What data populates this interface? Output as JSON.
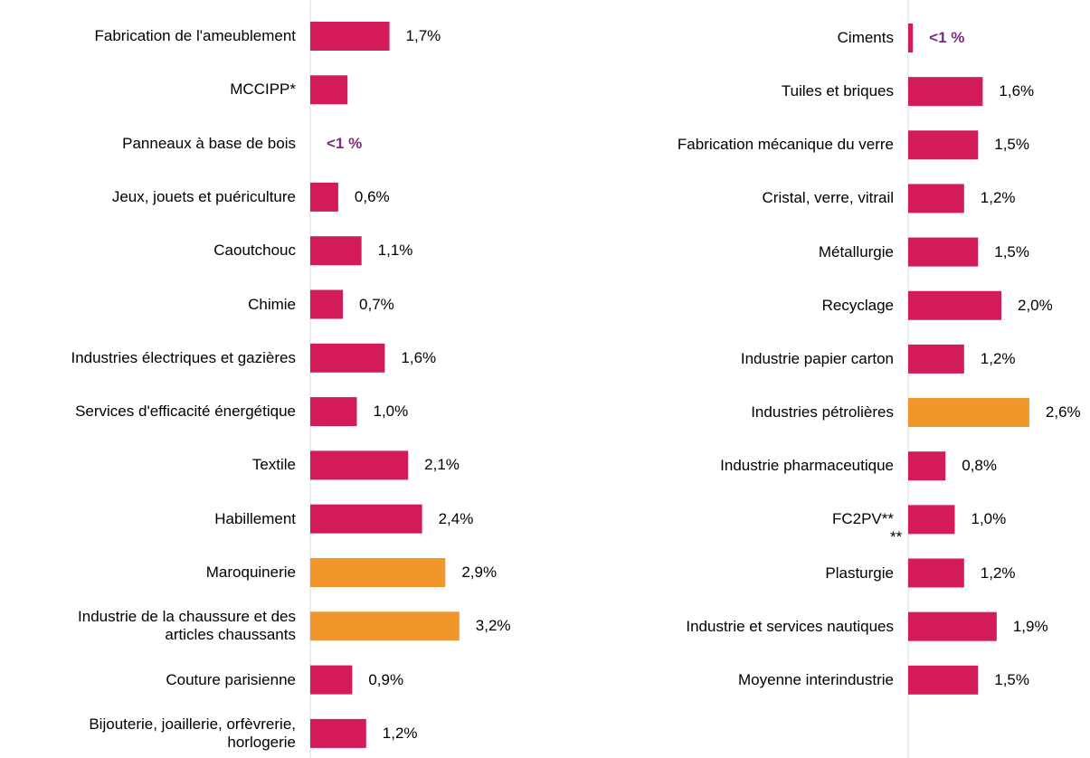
{
  "chart_data": [
    {
      "type": "bar",
      "categories": [
        "Fabrication de l'ameublement",
        "MCCIPP*",
        "Panneaux à base de bois",
        "Jeux, jouets et puériculture",
        "Caoutchouc",
        "Chimie",
        "Industries électriques et gazières",
        "Services d'efficacité énergétique",
        "Textile",
        "Habillement",
        "Maroquinerie",
        "Industrie de la chaussure et des\narticles chaussants",
        "Couture parisienne",
        "Bijouterie, joaillerie, orfèvrerie,\nhorlogerie"
      ],
      "values": [
        1.7,
        0.8,
        null,
        0.6,
        1.1,
        0.7,
        1.6,
        1.0,
        2.1,
        2.4,
        2.9,
        3.2,
        0.9,
        1.2
      ],
      "value_labels": [
        "1,7%",
        null,
        "<1 %",
        "0,6%",
        "1,1%",
        "0,7%",
        "1,6%",
        "1,0%",
        "2,1%",
        "2,4%",
        "2,9%",
        "3,2%",
        "0,9%",
        "1,2%"
      ],
      "value_label_colors": [
        "#000000",
        "#000000",
        "#7b2c7e",
        "#000000",
        "#000000",
        "#000000",
        "#000000",
        "#000000",
        "#000000",
        "#000000",
        "#000000",
        "#000000",
        "#000000",
        "#000000"
      ],
      "colors": [
        "#d31b5b",
        "#d31b5b",
        "#d31b5b",
        "#d31b5b",
        "#d31b5b",
        "#d31b5b",
        "#d31b5b",
        "#d31b5b",
        "#d31b5b",
        "#d31b5b",
        "#f0962a",
        "#f0962a",
        "#d31b5b",
        "#d31b5b"
      ]
    },
    {
      "type": "bar",
      "categories": [
        "Ciments",
        "Tuiles et briques",
        "Fabrication mécanique du verre",
        "Cristal, verre, vitrail ",
        "Métallurgie",
        "Recyclage",
        "Industrie papier carton",
        "Industries pétrolières",
        "Industrie pharmaceutique",
        "FC2PV**",
        "Plasturgie",
        "Industrie et services nautiques",
        "Moyenne interindustrie"
      ],
      "values": [
        0.1,
        1.6,
        1.5,
        1.2,
        1.5,
        2.0,
        1.2,
        2.6,
        0.8,
        1.0,
        1.2,
        1.9,
        1.5
      ],
      "value_labels": [
        "<1 %",
        "1,6%",
        "1,5%",
        "1,2%",
        "1,5%",
        "2,0%",
        "1,2%",
        "2,6%",
        "0,8%",
        "1,0%",
        "1,2%",
        "1,9%",
        "1,5%"
      ],
      "value_label_colors": [
        "#7b2c7e",
        "#000000",
        "#000000",
        "#000000",
        "#000000",
        "#000000",
        "#000000",
        "#000000",
        "#000000",
        "#000000",
        "#000000",
        "#000000",
        "#000000"
      ],
      "colors": [
        "#d31b5b",
        "#d31b5b",
        "#d31b5b",
        "#d31b5b",
        "#d31b5b",
        "#d31b5b",
        "#d31b5b",
        "#f0962a",
        "#d31b5b",
        "#d31b5b",
        "#d31b5b",
        "#d31b5b",
        "#d31b5b"
      ],
      "annotation": "**"
    }
  ]
}
